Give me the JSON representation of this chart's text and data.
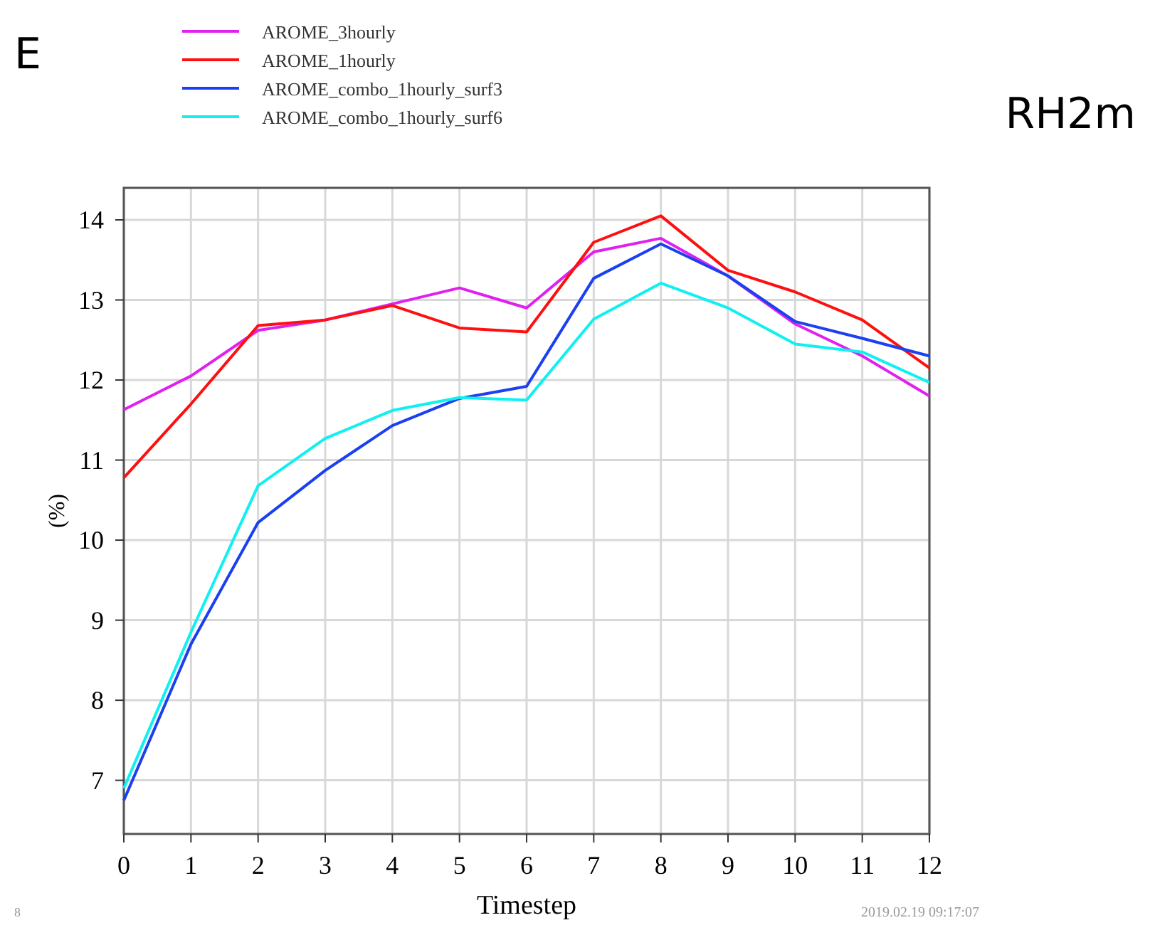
{
  "chart_data": {
    "type": "line",
    "title": "RH2m",
    "xlabel": "Timestep",
    "ylabel": "(%)",
    "x": [
      0,
      1,
      2,
      3,
      4,
      5,
      6,
      7,
      8,
      9,
      10,
      11,
      12
    ],
    "series": [
      {
        "name": "AROME_3hourly",
        "color": "#e020f0",
        "values": [
          11.63,
          12.05,
          12.62,
          12.75,
          12.95,
          13.15,
          12.9,
          13.6,
          13.77,
          13.3,
          12.7,
          12.3,
          11.8
        ]
      },
      {
        "name": "AROME_1hourly",
        "color": "#ff1010",
        "values": [
          10.78,
          11.7,
          12.68,
          12.75,
          12.93,
          12.65,
          12.6,
          13.72,
          14.05,
          13.37,
          13.1,
          12.75,
          12.15
        ]
      },
      {
        "name": "AROME_combo_1hourly_surf3",
        "color": "#1a40f0",
        "values": [
          6.75,
          8.7,
          10.22,
          10.87,
          11.43,
          11.77,
          11.92,
          13.27,
          13.7,
          13.3,
          12.73,
          12.52,
          12.3
        ]
      },
      {
        "name": "AROME_combo_1hourly_surf6",
        "color": "#10f0f0",
        "values": [
          6.9,
          8.85,
          10.68,
          11.27,
          11.62,
          11.78,
          11.75,
          12.76,
          13.21,
          12.9,
          12.45,
          12.35,
          11.97
        ]
      }
    ],
    "xlim": [
      0,
      12
    ],
    "xticks": [
      0,
      1,
      2,
      3,
      4,
      5,
      6,
      7,
      8,
      9,
      10,
      11,
      12
    ],
    "ylim": [
      6.33,
      14.4
    ],
    "yticks": [
      7,
      8,
      9,
      10,
      11,
      12,
      13,
      14
    ],
    "grid": true,
    "legend": "top",
    "marker": "none",
    "line_style": "solid",
    "annotations": [
      "E",
      "8",
      "2019.02.19 09:17:07"
    ]
  }
}
